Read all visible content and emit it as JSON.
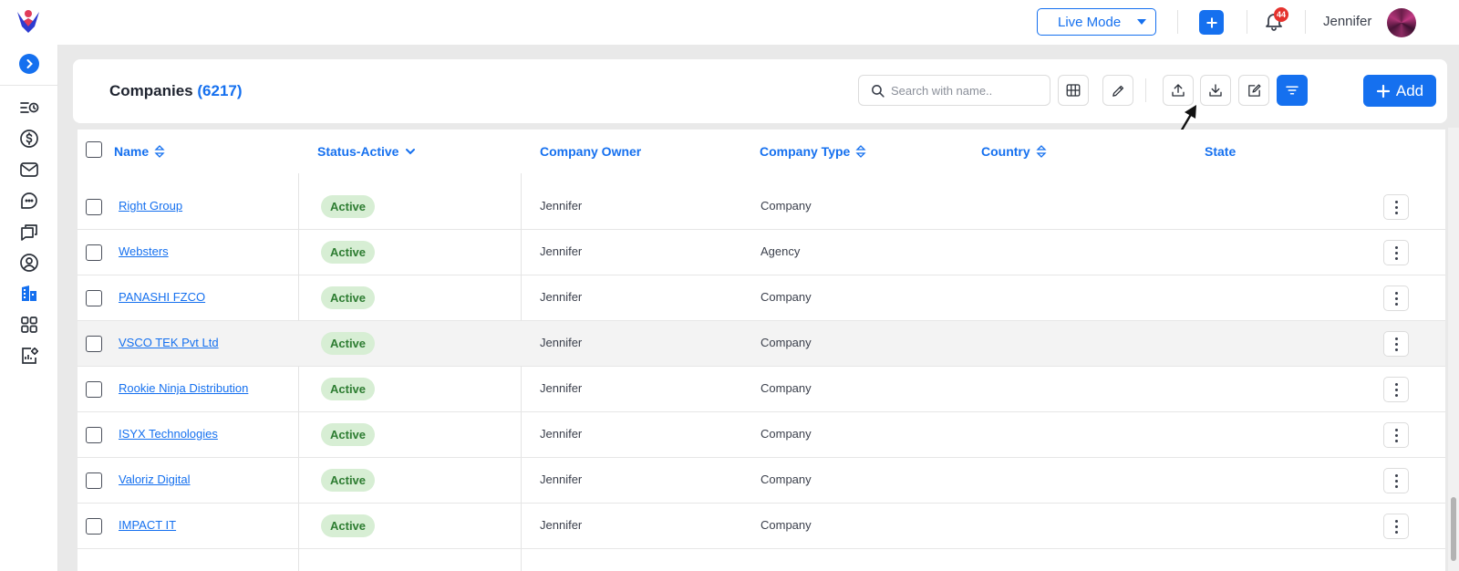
{
  "topbar": {
    "mode_label": "Live Mode",
    "notification_count": "44",
    "user_name": "Jennifer"
  },
  "header": {
    "title": "Companies",
    "count": "(6217)",
    "search_placeholder": "Search with name..",
    "add_label": "Add"
  },
  "table": {
    "columns": {
      "name": "Name",
      "status": "Status-Active",
      "owner": "Company Owner",
      "type": "Company Type",
      "country": "Country",
      "state": "State"
    },
    "rows": [
      {
        "name": "Right Group",
        "status": "Active",
        "owner": "Jennifer",
        "type": "Company"
      },
      {
        "name": "Websters",
        "status": "Active",
        "owner": "Jennifer",
        "type": "Agency"
      },
      {
        "name": "PANASHI FZCO",
        "status": "Active",
        "owner": "Jennifer",
        "type": "Company"
      },
      {
        "name": "VSCO TEK Pvt Ltd",
        "status": "Active",
        "owner": "Jennifer",
        "type": "Company"
      },
      {
        "name": "Rookie Ninja Distribution",
        "status": "Active",
        "owner": "Jennifer",
        "type": "Company"
      },
      {
        "name": "ISYX Technologies",
        "status": "Active",
        "owner": "Jennifer",
        "type": "Company"
      },
      {
        "name": "Valoriz Digital",
        "status": "Active",
        "owner": "Jennifer",
        "type": "Company"
      },
      {
        "name": "IMPACT IT",
        "status": "Active",
        "owner": "Jennifer",
        "type": "Company"
      }
    ]
  },
  "sidebar": {
    "icons": [
      "timeline-icon",
      "dollar-icon",
      "mail-icon",
      "chat-icon",
      "messages-icon",
      "user-icon",
      "building-icon",
      "apps-icon",
      "report-settings-icon"
    ]
  },
  "colors": {
    "accent": "#1570ef",
    "badge_bg": "#d7eed4",
    "badge_text": "#2e7d32"
  }
}
